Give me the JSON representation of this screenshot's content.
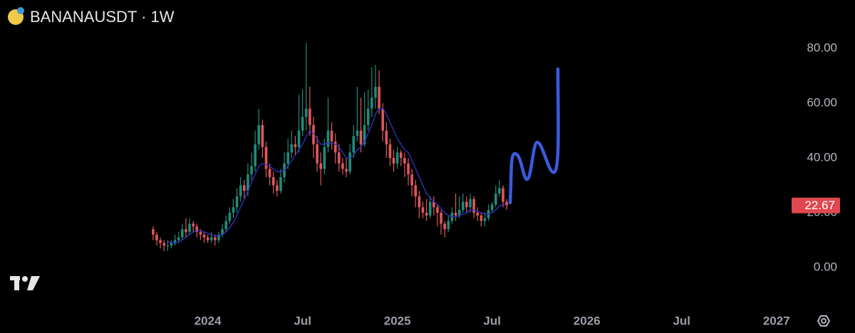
{
  "chart_data": {
    "type": "candlestick",
    "title": "BANANAUSDT · 1W",
    "open": [
      14,
      12,
      10,
      9,
      8,
      8,
      9,
      10,
      11,
      14,
      13,
      16,
      15,
      13,
      12,
      11,
      10,
      11,
      10,
      12,
      14,
      17,
      20,
      22,
      26,
      30,
      28,
      34,
      37,
      45,
      52,
      44,
      36,
      33,
      30,
      28,
      33,
      38,
      42,
      45,
      44,
      50,
      55,
      58,
      52,
      45,
      38,
      36,
      44,
      50,
      46,
      42,
      38,
      36,
      35,
      42,
      48,
      50,
      45,
      52,
      58,
      62,
      66,
      58,
      50,
      45,
      40,
      38,
      42,
      40,
      38,
      34,
      30,
      26,
      22,
      20,
      19,
      24,
      22,
      20,
      16,
      14,
      17,
      20,
      19,
      21,
      24,
      22,
      25,
      20,
      19,
      17,
      18,
      21,
      23,
      27,
      29,
      24
    ],
    "high": [
      15,
      13,
      11,
      10,
      10,
      10,
      12,
      13,
      16,
      18,
      18,
      17,
      16,
      14,
      13,
      12,
      13,
      12,
      13,
      16,
      19,
      22,
      25,
      29,
      33,
      32,
      38,
      42,
      50,
      58,
      54,
      46,
      38,
      35,
      32,
      36,
      42,
      47,
      50,
      48,
      63,
      65,
      82,
      66,
      55,
      48,
      42,
      47,
      62,
      53,
      49,
      45,
      40,
      40,
      45,
      52,
      66,
      62,
      64,
      65,
      73,
      74,
      72,
      60,
      53,
      47,
      43,
      44,
      43,
      42,
      40,
      36,
      32,
      28,
      24,
      25,
      26,
      26,
      23,
      21,
      17,
      19,
      22,
      27,
      26,
      27,
      26,
      27,
      26,
      22,
      20,
      20,
      23,
      24,
      30,
      32,
      30,
      25
    ],
    "low": [
      10,
      8,
      7,
      6,
      6,
      7,
      8,
      9,
      10,
      11,
      12,
      13,
      11,
      10,
      9,
      9,
      9,
      8,
      9,
      11,
      13,
      16,
      18,
      20,
      24,
      25,
      26,
      32,
      35,
      43,
      40,
      33,
      30,
      27,
      26,
      27,
      31,
      36,
      40,
      41,
      42,
      48,
      50,
      48,
      40,
      35,
      30,
      34,
      42,
      43,
      38,
      35,
      34,
      33,
      34,
      40,
      46,
      42,
      44,
      50,
      55,
      58,
      56,
      46,
      40,
      37,
      35,
      36,
      37,
      33,
      30,
      26,
      22,
      18,
      18,
      17,
      18,
      19,
      15,
      12,
      11,
      13,
      16,
      17,
      18,
      20,
      20,
      20,
      18,
      17,
      15,
      15,
      17,
      20,
      22,
      26,
      22,
      21
    ],
    "close": [
      12,
      10,
      9,
      8,
      8,
      9,
      10,
      11,
      14,
      13,
      16,
      15,
      13,
      12,
      11,
      10,
      11,
      10,
      12,
      14,
      17,
      20,
      22,
      26,
      30,
      28,
      34,
      37,
      45,
      52,
      44,
      36,
      33,
      30,
      28,
      33,
      38,
      42,
      45,
      44,
      50,
      55,
      58,
      52,
      45,
      38,
      36,
      44,
      50,
      46,
      42,
      38,
      36,
      35,
      42,
      48,
      50,
      45,
      52,
      58,
      62,
      66,
      58,
      50,
      45,
      40,
      38,
      42,
      40,
      38,
      34,
      30,
      26,
      22,
      20,
      19,
      24,
      22,
      20,
      16,
      14,
      17,
      20,
      19,
      21,
      24,
      22,
      25,
      20,
      19,
      17,
      18,
      21,
      23,
      27,
      29,
      24,
      22.67
    ],
    "ma": [
      null,
      null,
      null,
      null,
      9.5,
      9,
      9,
      9.2,
      10,
      11,
      12,
      13,
      13.5,
      13.5,
      13,
      12.5,
      12,
      11.5,
      11.5,
      12,
      13,
      14.5,
      16.5,
      19,
      22,
      25,
      28,
      31,
      34,
      37,
      38,
      37.5,
      37,
      36,
      35,
      35,
      35.5,
      37,
      39,
      41,
      43,
      45,
      48,
      50,
      49,
      47,
      45,
      45,
      45.5,
      45.5,
      45,
      44,
      42,
      40,
      40,
      41,
      43,
      44,
      46,
      49,
      52,
      56,
      58,
      58,
      56,
      53,
      50,
      47,
      45,
      43,
      42,
      39,
      36,
      33,
      30,
      27,
      25.5,
      24,
      23,
      21.5,
      20,
      19,
      18.5,
      18.5,
      19,
      19.5,
      20,
      21,
      21,
      20.5,
      20,
      19.5,
      19.5,
      20,
      21,
      22.5,
      23,
      23
    ],
    "up_color": "#1f8c7c",
    "down_color": "#e0575a",
    "ma_color": "#3434c8",
    "last_price": 22.67,
    "last_price_color": "#e0484f",
    "xlim": [
      -42,
      173
    ],
    "xticks": [
      {
        "value": 15,
        "label": "2024"
      },
      {
        "value": 41,
        "label": "Jul"
      },
      {
        "value": 67,
        "label": "2025"
      },
      {
        "value": 93,
        "label": "Jul"
      },
      {
        "value": 119,
        "label": "2026"
      },
      {
        "value": 145,
        "label": "Jul"
      },
      {
        "value": 171,
        "label": "2027"
      }
    ],
    "ylim": [
      0,
      80
    ],
    "yticks": [
      {
        "value": 0,
        "label": "0.00"
      },
      {
        "value": 20,
        "label": "20.00"
      },
      {
        "value": 40,
        "label": "40.00"
      },
      {
        "value": 60,
        "label": "60.00"
      },
      {
        "value": 80,
        "label": "80.00"
      }
    ]
  }
}
